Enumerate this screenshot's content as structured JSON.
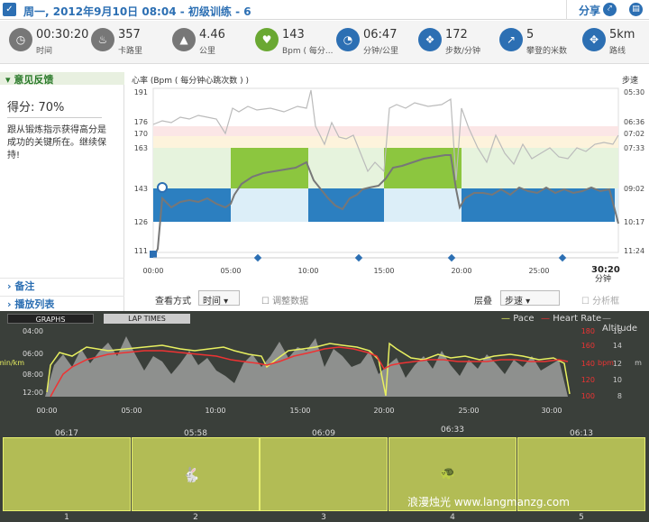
{
  "header": {
    "title": "周一, 2012年9月10日 08:04 - 初级训练  - 6",
    "share": "分享"
  },
  "stats": [
    {
      "value": "00:30:20",
      "label": "时间",
      "icon": "stopwatch-icon",
      "color": "#666"
    },
    {
      "value": "357",
      "label": "卡路里",
      "icon": "flame-icon",
      "color": "#666"
    },
    {
      "value": "4.46",
      "label": "公里",
      "icon": "road-icon",
      "color": "#666"
    },
    {
      "value": "143",
      "label": "Bpm ( 每分...",
      "icon": "heart-icon",
      "color": "#6aa832"
    },
    {
      "value": "06:47",
      "label": "分钟/公里",
      "icon": "gauge-icon",
      "color": "#2c6fb3"
    },
    {
      "value": "172",
      "label": "步数/分钟",
      "icon": "footsteps-icon",
      "color": "#2c6fb3"
    },
    {
      "value": "5",
      "label": "攀登的米数",
      "icon": "climb-icon",
      "color": "#2c6fb3"
    },
    {
      "value": "5km",
      "label": "路线",
      "icon": "route-icon",
      "color": "#2c6fb3"
    }
  ],
  "sidebar": {
    "feedback": "意见反馈",
    "score": "得分: 70%",
    "desc": "跟从锻炼指示获得高分是成功的关键所在。继续保持!",
    "notes": "备注",
    "playlist": "播放列表"
  },
  "chart1": {
    "title": "心率 (Bpm ( 每分钟心跳次数 ) )",
    "right_title": "步速",
    "left_ticks": [
      "191",
      "176",
      "170",
      "163",
      "143",
      "126",
      "111"
    ],
    "right_ticks": [
      "05:30",
      "06:36",
      "07:02",
      "07:33",
      "09:02",
      "10:17",
      "11:24"
    ],
    "x_ticks": [
      "00:00",
      "05:00",
      "10:00",
      "15:00",
      "20:00",
      "25:00"
    ],
    "total": "30:20",
    "total_unit": "分钟"
  },
  "controls": {
    "view_label": "查看方式",
    "view_value": "时间",
    "adjust": "调整数据",
    "layer_label": "层叠",
    "layer_value": "步速",
    "analysis": "分析框"
  },
  "lower": {
    "tab1": "GRAPHS",
    "tab2": "LAP TIMES",
    "legend": [
      "Pace",
      "Heart Rate",
      "Altitude"
    ],
    "y_left": [
      "04:00",
      "06:00",
      "08:00",
      "12:00"
    ],
    "y_left_label": "min/km",
    "y_mid": [
      "180",
      "160",
      "140",
      "120",
      "100"
    ],
    "y_mid_label": "bpm",
    "y_right": [
      "16",
      "14",
      "12",
      "10",
      "8"
    ],
    "y_right_label": "m",
    "x_ticks": [
      "00:00",
      "05:00",
      "10:00",
      "15:00",
      "20:00",
      "25:00",
      "30:00"
    ],
    "laps": [
      {
        "n": "1",
        "pace": "06:17"
      },
      {
        "n": "2",
        "pace": "05:58"
      },
      {
        "n": "3",
        "pace": "06:09"
      },
      {
        "n": "4",
        "pace": "06:33"
      },
      {
        "n": "5",
        "pace": "06:13"
      }
    ]
  },
  "watermark": "浪漫烛光 www.langmanzg.com"
}
